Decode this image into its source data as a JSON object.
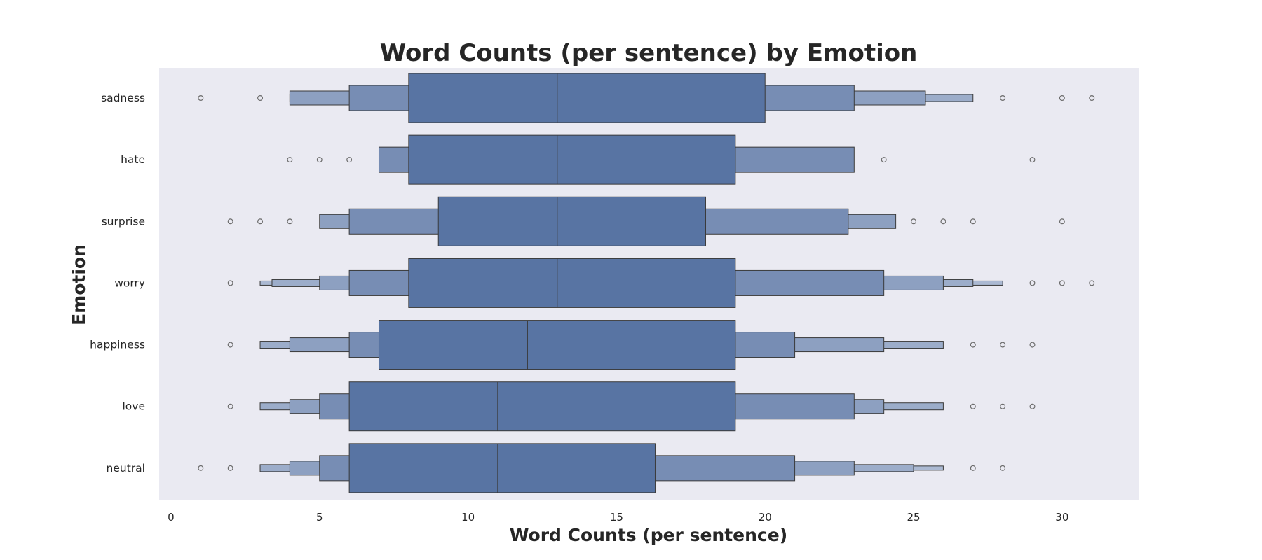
{
  "chart_data": {
    "type": "boxen",
    "title": "Word Counts (per sentence) by Emotion",
    "xlabel": "Word Counts (per sentence)",
    "ylabel": "Emotion",
    "xlim": [
      -0.4,
      32.6
    ],
    "x_ticks": [
      0,
      5,
      10,
      15,
      20,
      25,
      30
    ],
    "grid": false,
    "colors": {
      "background": "#eaeaf2",
      "box_levels": [
        "#5874a3",
        "#778db4",
        "#8da0c1",
        "#9cadca",
        "#abb9d2"
      ],
      "outline": "#3a3a3a",
      "text": "#262626"
    },
    "categories": [
      "sadness",
      "hate",
      "surprise",
      "worry",
      "happiness",
      "love",
      "neutral"
    ],
    "series": [
      {
        "category": "sadness",
        "median": 13,
        "boxes": [
          [
            8,
            20
          ],
          [
            6,
            23
          ],
          [
            4,
            25.4
          ],
          [
            4,
            27
          ]
        ],
        "outliers": [
          1,
          3,
          28,
          30,
          31
        ]
      },
      {
        "category": "hate",
        "median": 13,
        "boxes": [
          [
            8,
            19
          ],
          [
            7,
            23
          ]
        ],
        "outliers": [
          4,
          5,
          6,
          24,
          29
        ]
      },
      {
        "category": "surprise",
        "median": 13,
        "boxes": [
          [
            9,
            18
          ],
          [
            6,
            22.8
          ],
          [
            5,
            24.4
          ]
        ],
        "outliers": [
          2,
          3,
          4,
          25,
          26,
          27,
          30
        ]
      },
      {
        "category": "worry",
        "median": 13,
        "boxes": [
          [
            8,
            19
          ],
          [
            6,
            24
          ],
          [
            5,
            26
          ],
          [
            3.4,
            27
          ],
          [
            3,
            28
          ]
        ],
        "outliers": [
          2,
          29,
          30,
          31
        ]
      },
      {
        "category": "happiness",
        "median": 12,
        "boxes": [
          [
            7,
            19
          ],
          [
            6,
            21
          ],
          [
            4,
            24
          ],
          [
            3,
            26
          ]
        ],
        "outliers": [
          2,
          27,
          28,
          29
        ]
      },
      {
        "category": "love",
        "median": 11,
        "boxes": [
          [
            6,
            19
          ],
          [
            5,
            23
          ],
          [
            4,
            24
          ],
          [
            3,
            26
          ]
        ],
        "outliers": [
          2,
          27,
          28,
          29
        ]
      },
      {
        "category": "neutral",
        "median": 11,
        "boxes": [
          [
            6,
            16.3
          ],
          [
            5,
            21
          ],
          [
            4,
            23
          ],
          [
            3,
            25
          ],
          [
            3,
            26
          ]
        ],
        "outliers": [
          1,
          2,
          27,
          28
        ]
      }
    ]
  }
}
